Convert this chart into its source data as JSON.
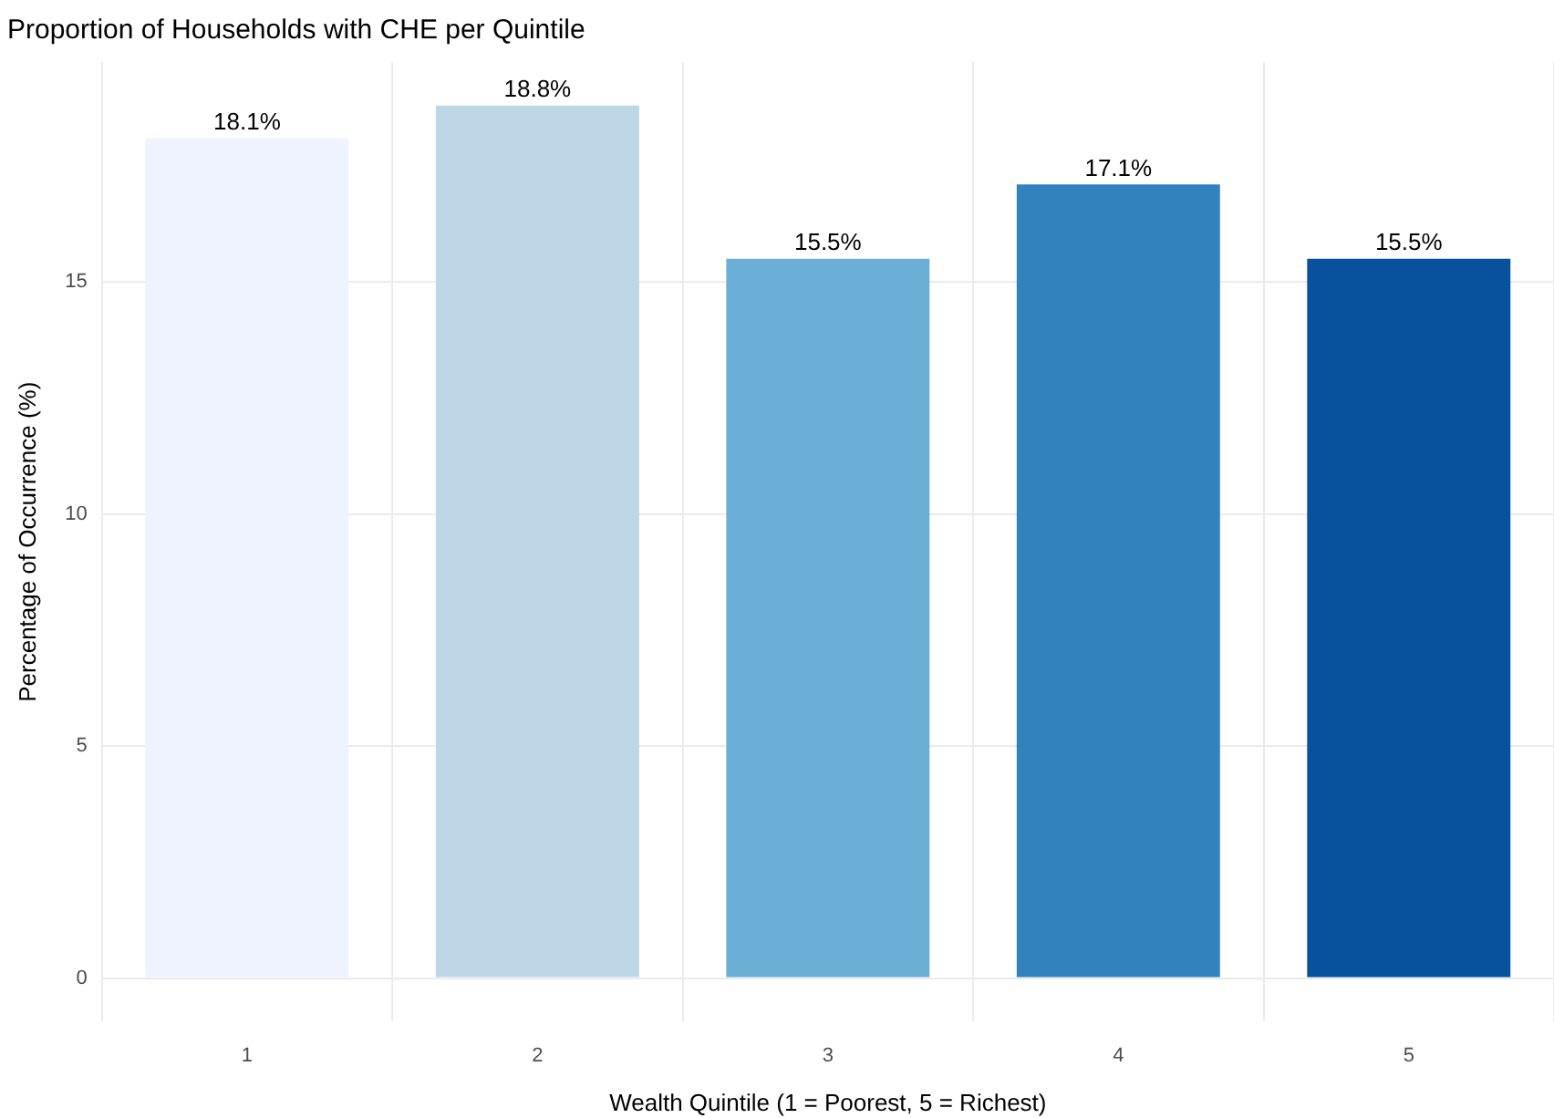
{
  "chart_data": {
    "type": "bar",
    "title": "Proportion of Households with CHE per Quintile",
    "xlabel": "Wealth Quintile (1 = Poorest, 5 = Richest)",
    "ylabel": "Percentage of Occurrence (%)",
    "categories": [
      "1",
      "2",
      "3",
      "4",
      "5"
    ],
    "values": [
      18.1,
      18.8,
      15.5,
      17.1,
      15.5
    ],
    "value_labels": [
      "18.1%",
      "18.8%",
      "15.5%",
      "17.1%",
      "15.5%"
    ],
    "colors": [
      "#eff3ff",
      "#bdd7e7",
      "#6baed6",
      "#3182bd",
      "#08519c"
    ],
    "ylim": [
      -0.94,
      19.74
    ],
    "yticks": [
      0,
      5,
      10,
      15
    ],
    "grid": true,
    "legend": false
  }
}
